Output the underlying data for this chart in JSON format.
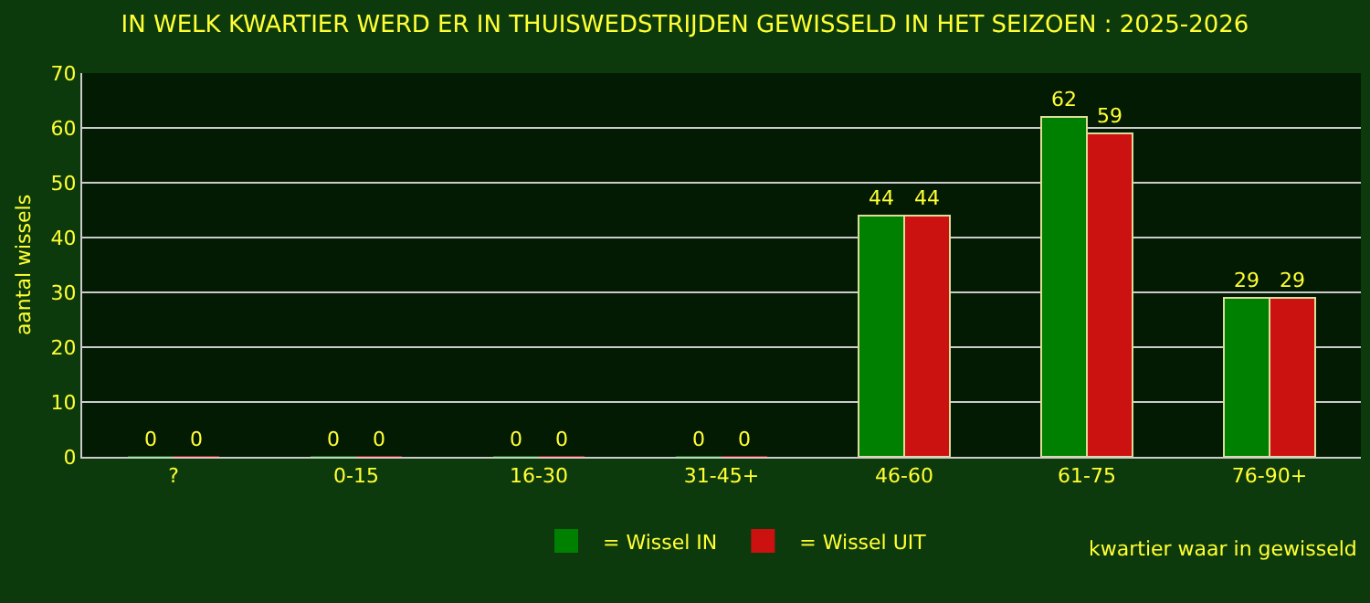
{
  "chart_data": {
    "type": "bar",
    "title": "IN WELK KWARTIER WERD ER IN THUISWEDSTRIJDEN GEWISSELD IN HET SEIZOEN : 2025-2026",
    "xlabel": "kwartier waar in gewisseld",
    "ylabel": "aantal wissels",
    "categories": [
      "?",
      "0-15",
      "16-30",
      "31-45+",
      "46-60",
      "61-75",
      "76-90+"
    ],
    "series": [
      {
        "name": "= Wissel IN",
        "color": "#008000",
        "values": [
          0,
          0,
          0,
          0,
          44,
          62,
          29
        ]
      },
      {
        "name": "= Wissel UIT",
        "color": "#cc1111",
        "values": [
          0,
          0,
          0,
          0,
          44,
          59,
          29
        ]
      }
    ],
    "ylim": [
      0,
      70
    ],
    "yticks": [
      0,
      10,
      20,
      30,
      40,
      50,
      60,
      70
    ],
    "grid": "y",
    "legend": "bottom",
    "data_labels": true
  }
}
